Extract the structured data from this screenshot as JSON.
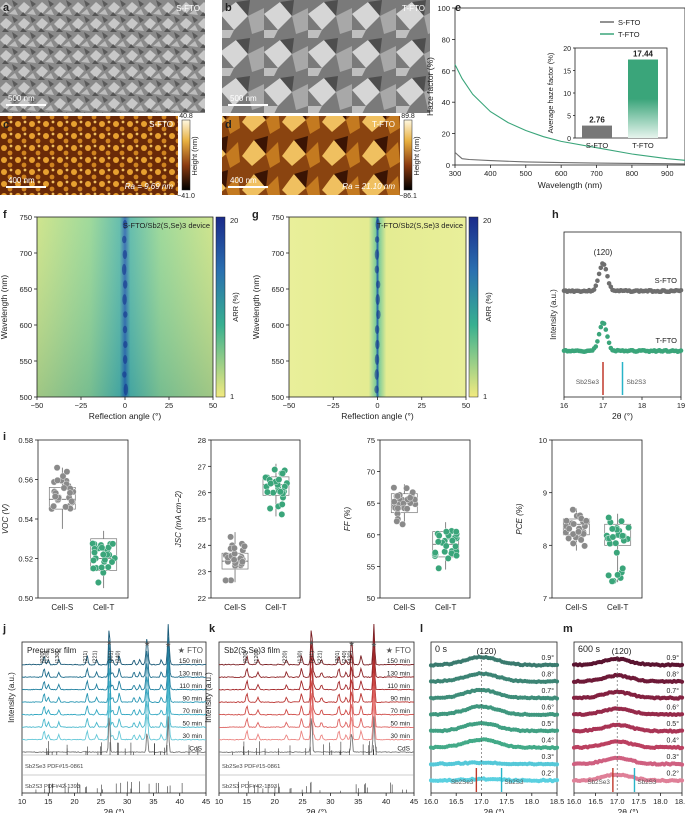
{
  "figure": {
    "colors": {
      "sfto": "#6e6e6e",
      "tfto": "#3aa57a",
      "red": "#c0392b",
      "cyan": "#28b4c8",
      "axis": "#222222"
    },
    "panel_letters": [
      "a",
      "b",
      "c",
      "d",
      "e",
      "f",
      "g",
      "h",
      "i",
      "j",
      "k",
      "l",
      "m"
    ]
  },
  "images": {
    "a": {
      "label": "S-FTO",
      "scale": "500 nm"
    },
    "b": {
      "label": "T-FTO",
      "scale": "500 nm"
    },
    "c": {
      "label": "S-FTO",
      "scale": "400 nm",
      "ra": "Ra = 9.69 nm",
      "cmax": "40.8",
      "cmin": "−41.0",
      "cbar_label": "Height (nm)"
    },
    "d": {
      "label": "T-FTO",
      "scale": "400 nm",
      "ra": "Ra = 21.10 nm",
      "cmax": "89.8",
      "cmin": "−86.1",
      "cbar_label": "Height (nm)"
    }
  },
  "chart_data": [
    {
      "id": "e",
      "type": "line",
      "xlabel": "Wavelength (nm)",
      "ylabel": "Haze factor (%)",
      "xlim": [
        300,
        950
      ],
      "ylim": [
        0,
        100
      ],
      "xticks": [
        "300",
        "400",
        "500",
        "600",
        "700",
        "800",
        "900"
      ],
      "yticks": [
        "0",
        "20",
        "40",
        "60",
        "80",
        "100"
      ],
      "series": [
        {
          "name": "S-FTO",
          "x": [
            300,
            310,
            320,
            340,
            400,
            500,
            600,
            700,
            800,
            900,
            950
          ],
          "y": [
            8,
            6,
            4,
            3.5,
            2.8,
            2,
            1.5,
            1.2,
            1,
            0.8,
            0.7
          ]
        },
        {
          "name": "T-FTO",
          "x": [
            300,
            320,
            350,
            400,
            450,
            500,
            550,
            600,
            700,
            800,
            900,
            950
          ],
          "y": [
            64,
            55,
            45,
            34,
            27,
            22,
            18,
            15,
            11,
            7,
            4,
            3
          ]
        }
      ],
      "inset": {
        "type": "bar",
        "ylabel": "Average haze factor (%)",
        "categories": [
          "S-FTO",
          "T-FTO"
        ],
        "values": [
          2.76,
          17.44
        ],
        "labels": [
          "2.76",
          "17.44"
        ],
        "ylim": [
          0,
          20
        ],
        "yticks": [
          "0",
          "5",
          "10",
          "15",
          "20"
        ]
      }
    },
    {
      "id": "f",
      "type": "heatmap",
      "title": "S-FTO/Sb2(S,Se)3 device",
      "xlabel": "Reflection angle (°)",
      "ylabel": "Wavelength (nm)",
      "xlim": [
        -50,
        50
      ],
      "ylim": [
        500,
        750
      ],
      "xticks": [
        "−50",
        "−25",
        "0",
        "25",
        "50"
      ],
      "yticks": [
        "500",
        "550",
        "600",
        "650",
        "700",
        "750"
      ],
      "cbar": {
        "label": "ARR (%)",
        "max": "20",
        "min": "1"
      }
    },
    {
      "id": "g",
      "type": "heatmap",
      "title": "T-FTO/Sb2(S,Se)3 device",
      "xlabel": "Reflection angle (°)",
      "ylabel": "Wavelength (nm)",
      "xlim": [
        -50,
        50
      ],
      "ylim": [
        500,
        750
      ],
      "xticks": [
        "−50",
        "−25",
        "0",
        "25",
        "50"
      ],
      "yticks": [
        "500",
        "550",
        "600",
        "650",
        "700",
        "750"
      ],
      "cbar": {
        "label": "ARR (%)",
        "max": "20",
        "min": "1"
      }
    },
    {
      "id": "h",
      "type": "scatter",
      "xlabel": "2θ (°)",
      "ylabel": "Intensity (a.u.)",
      "xlim": [
        16,
        19
      ],
      "xticks": [
        "16",
        "17",
        "18",
        "19"
      ],
      "peak_label": "(120)",
      "series": [
        {
          "name": "S-FTO",
          "peak": 17.0
        },
        {
          "name": "T-FTO",
          "peak": 17.0
        }
      ],
      "refs": [
        {
          "name": "Sb2Se3",
          "x": 17.0
        },
        {
          "name": "Sb2S3",
          "x": 17.5
        }
      ]
    },
    {
      "id": "i",
      "type": "scatter",
      "kind": "box",
      "categories": [
        "Cell-S",
        "Cell-T"
      ],
      "subplots": [
        {
          "ylabel": "VOC (V)",
          "ylim": [
            0.5,
            0.58
          ],
          "yticks": [
            "0.50",
            "0.52",
            "0.54",
            "0.56",
            "0.58"
          ],
          "box": [
            {
              "q1": 0.545,
              "med": 0.55,
              "q3": 0.556,
              "lo": 0.535,
              "hi": 0.566
            },
            {
              "q1": 0.514,
              "med": 0.52,
              "q3": 0.53,
              "lo": 0.505,
              "hi": 0.534
            }
          ]
        },
        {
          "ylabel": "JSC (mA cm−2)",
          "ylim": [
            22,
            28
          ],
          "yticks": [
            "22",
            "23",
            "24",
            "25",
            "26",
            "27",
            "28"
          ],
          "box": [
            {
              "q1": 23.1,
              "med": 23.4,
              "q3": 23.7,
              "lo": 22.6,
              "hi": 24.5
            },
            {
              "q1": 25.9,
              "med": 26.3,
              "q3": 26.6,
              "lo": 25.1,
              "hi": 27.1
            }
          ]
        },
        {
          "ylabel": "FF (%)",
          "ylim": [
            50,
            75
          ],
          "yticks": [
            "50",
            "55",
            "60",
            "65",
            "70",
            "75"
          ],
          "box": [
            {
              "q1": 63.5,
              "med": 65,
              "q3": 66.5,
              "lo": 61.5,
              "hi": 68
            },
            {
              "q1": 56.5,
              "med": 58.5,
              "q3": 60.5,
              "lo": 54.5,
              "hi": 62
            }
          ]
        },
        {
          "ylabel": "PCE (%)",
          "ylim": [
            7,
            10
          ],
          "yticks": [
            "7",
            "8",
            "9",
            "10"
          ],
          "box": [
            {
              "q1": 8.2,
              "med": 8.4,
              "q3": 8.5,
              "lo": 7.9,
              "hi": 8.7
            },
            {
              "q1": 8.0,
              "med": 8.15,
              "q3": 8.4,
              "lo": 7.3,
              "hi": 8.6
            }
          ]
        }
      ]
    },
    {
      "id": "j",
      "type": "line",
      "title": "Precursor film",
      "legend": "★ FTO",
      "xlabel": "2θ (°)",
      "ylabel": "Intensity (a.u.)",
      "xlim": [
        10,
        45
      ],
      "xticks": [
        "10",
        "15",
        "20",
        "25",
        "30",
        "35",
        "40",
        "45"
      ],
      "series": [
        "150 min",
        "130 min",
        "110 min",
        "90 min",
        "70 min",
        "50 min",
        "30 min",
        "CdS"
      ],
      "peaks": [
        "(020)",
        "(120)",
        "(130)",
        "(211)",
        "(221)",
        "(301)",
        "(240)"
      ],
      "refs": [
        "Sb2Se3 PDF#15-0861",
        "Sb2S3 PDF#42-1393"
      ]
    },
    {
      "id": "k",
      "type": "line",
      "title": "Sb2(S,Se)3 film",
      "legend": "★ FTO",
      "xlabel": "2θ (°)",
      "ylabel": "Intensity (a.u.)",
      "xlim": [
        10,
        45
      ],
      "xticks": [
        "10",
        "15",
        "20",
        "25",
        "30",
        "35",
        "40",
        "45"
      ],
      "series": [
        "150 min",
        "130 min",
        "110 min",
        "90 min",
        "70 min",
        "50 min",
        "30 min",
        "CdS"
      ],
      "peaks": [
        "(020)",
        "(120)",
        "(220)",
        "(130)",
        "(211)",
        "(221)",
        "(301)",
        "(240)",
        "(420)"
      ],
      "refs": [
        "Sb2Se3 PDF#15-0861",
        "Sb2S3 PDF#42-1393"
      ]
    },
    {
      "id": "l",
      "type": "scatter",
      "title": "0 s",
      "peak_label": "(120)",
      "xlabel": "2θ (°)",
      "ylabel": "",
      "xlim": [
        16.0,
        18.5
      ],
      "xticks": [
        "16.0",
        "16.5",
        "17.0",
        "17.5",
        "18.0",
        "18.5"
      ],
      "angles": [
        "0.9°",
        "0.8°",
        "0.7°",
        "0.6°",
        "0.5°",
        "0.4°",
        "0.3°",
        "0.2°"
      ],
      "refs": [
        "Sb2Se3",
        "Sb2S3"
      ]
    },
    {
      "id": "m",
      "type": "scatter",
      "title": "600 s",
      "peak_label": "(120)",
      "xlabel": "2θ (°)",
      "ylabel": "",
      "xlim": [
        16.0,
        18.5
      ],
      "xticks": [
        "16.0",
        "16.5",
        "17.0",
        "17.5",
        "18.0",
        "18.5"
      ],
      "angles": [
        "0.9°",
        "0.8°",
        "0.7°",
        "0.6°",
        "0.5°",
        "0.4°",
        "0.3°",
        "0.2°"
      ],
      "refs": [
        "Sb2Se3",
        "Sb2S3"
      ]
    }
  ]
}
